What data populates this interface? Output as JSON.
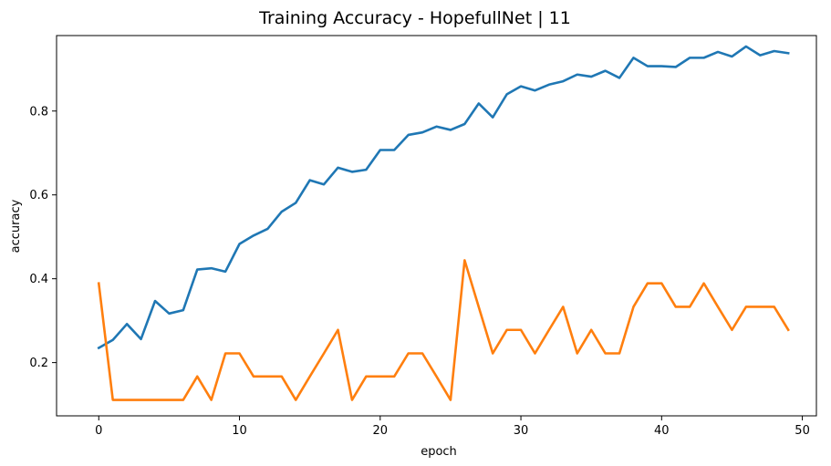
{
  "chart_data": {
    "type": "line",
    "title": "Training Accuracy - HopefullNet | 11",
    "xlabel": "epoch",
    "ylabel": "accuracy",
    "xlim": [
      -3,
      51
    ],
    "ylim": [
      0.073,
      0.98
    ],
    "xticks": [
      0,
      10,
      20,
      30,
      40,
      50
    ],
    "yticks": [
      0.2,
      0.4,
      0.6,
      0.8
    ],
    "grid": false,
    "legend": "none",
    "x": [
      0,
      1,
      2,
      3,
      4,
      5,
      6,
      7,
      8,
      9,
      10,
      11,
      12,
      13,
      14,
      15,
      16,
      17,
      18,
      19,
      20,
      21,
      22,
      23,
      24,
      25,
      26,
      27,
      28,
      29,
      30,
      31,
      32,
      33,
      34,
      35,
      36,
      37,
      38,
      39,
      40,
      41,
      42,
      43,
      44,
      45,
      46,
      47,
      48,
      49
    ],
    "series": [
      {
        "color": "#1f77b4",
        "values": [
          0.235,
          0.254,
          0.292,
          0.256,
          0.347,
          0.317,
          0.325,
          0.422,
          0.425,
          0.417,
          0.483,
          0.503,
          0.519,
          0.56,
          0.581,
          0.635,
          0.625,
          0.665,
          0.655,
          0.66,
          0.707,
          0.707,
          0.743,
          0.749,
          0.763,
          0.755,
          0.769,
          0.818,
          0.785,
          0.84,
          0.859,
          0.849,
          0.863,
          0.871,
          0.887,
          0.882,
          0.896,
          0.879,
          0.927,
          0.907,
          0.907,
          0.905,
          0.927,
          0.927,
          0.941,
          0.93,
          0.954,
          0.933,
          0.943,
          0.938
        ]
      },
      {
        "color": "#ff7f0e",
        "values": [
          0.389,
          0.111,
          0.111,
          0.111,
          0.111,
          0.111,
          0.111,
          0.167,
          0.111,
          0.222,
          0.222,
          0.167,
          0.167,
          0.167,
          0.111,
          0.167,
          0.222,
          0.278,
          0.111,
          0.167,
          0.167,
          0.167,
          0.222,
          0.222,
          0.167,
          0.111,
          0.444,
          0.333,
          0.222,
          0.278,
          0.278,
          0.222,
          0.278,
          0.333,
          0.222,
          0.278,
          0.222,
          0.222,
          0.333,
          0.389,
          0.389,
          0.333,
          0.333,
          0.389,
          0.333,
          0.278,
          0.333,
          0.333,
          0.333,
          0.278
        ]
      }
    ]
  }
}
